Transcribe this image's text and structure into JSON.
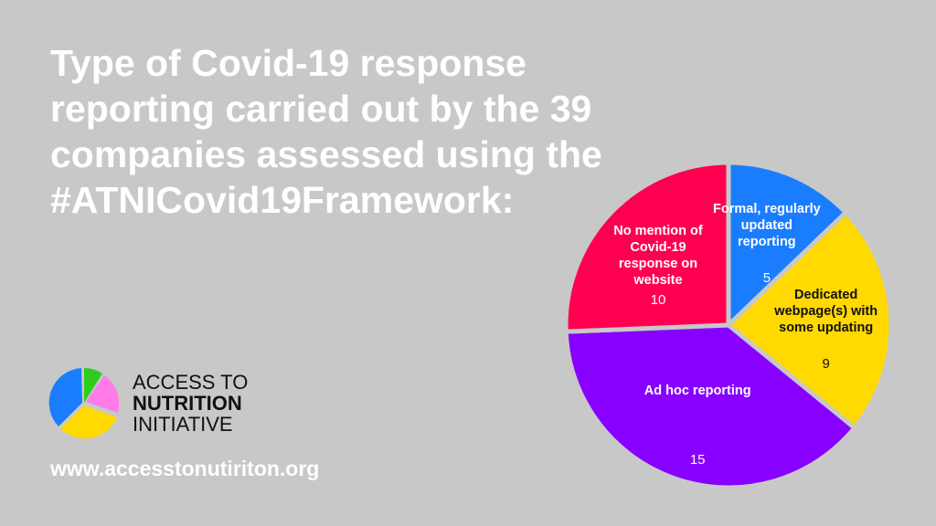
{
  "chart_data": {
    "type": "pie",
    "title": "Type of Covid-19 response reporting carried out by the 39 companies assessed using the #ATNICovid19Framework:",
    "categories": [
      "Formal, regularly updated reporting",
      "Dedicated webpage(s) with some updating",
      "Ad hoc reporting",
      "No mention of Covid-19 response on website"
    ],
    "values": [
      5,
      9,
      15,
      10
    ],
    "colors": [
      "#1a7dff",
      "#ffd900",
      "#8800ff",
      "#ff0050"
    ]
  },
  "logo": {
    "lines": [
      "ACCESS TO",
      "NUTRITION",
      "INITIATIVE"
    ]
  },
  "website": "www.accesstonutiriton.org"
}
